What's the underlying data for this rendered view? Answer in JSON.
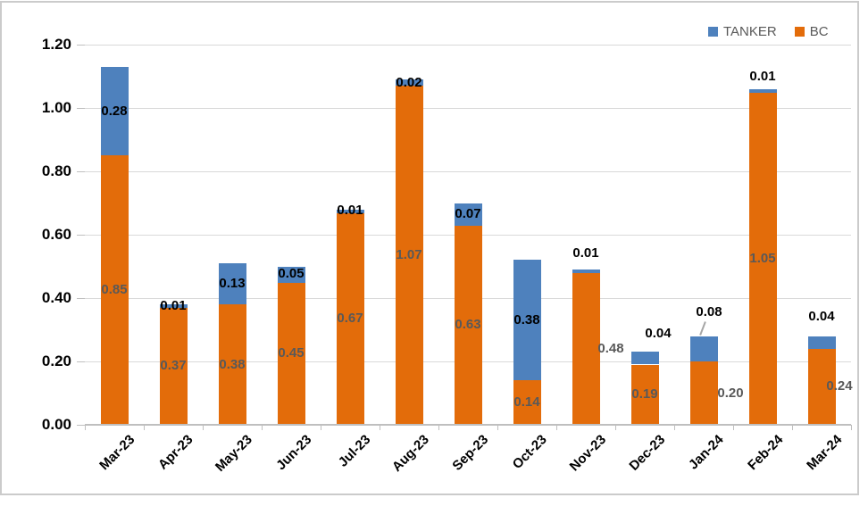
{
  "legend": {
    "items": [
      {
        "label": "TANKER",
        "color": "#4e81bd"
      },
      {
        "label": "BC",
        "color": "#e36c0a"
      }
    ]
  },
  "chart_data": {
    "type": "bar",
    "stacked": true,
    "title": "",
    "xlabel": "",
    "ylabel": "",
    "categories": [
      "Mar-23",
      "Apr-23",
      "May-23",
      "Jun-23",
      "Jul-23",
      "Aug-23",
      "Sep-23",
      "Oct-23",
      "Nov-23",
      "Dec-23",
      "Jan-24",
      "Feb-24",
      "Mar-24"
    ],
    "series": [
      {
        "name": "BC",
        "color": "#e36c0a",
        "label_color": "#595959",
        "values": [
          0.85,
          0.37,
          0.38,
          0.45,
          0.67,
          1.07,
          0.63,
          0.14,
          0.48,
          0.19,
          0.2,
          1.05,
          0.24
        ]
      },
      {
        "name": "TANKER",
        "color": "#4e81bd",
        "label_color": "#000000",
        "values": [
          0.28,
          0.01,
          0.13,
          0.05,
          0.01,
          0.02,
          0.07,
          0.38,
          0.01,
          0.04,
          0.08,
          0.01,
          0.04
        ]
      }
    ],
    "ylim": [
      0,
      1.2
    ],
    "ytick_labels": [
      "0.00",
      "0.20",
      "0.40",
      "0.60",
      "0.80",
      "1.00",
      "1.20"
    ],
    "grid": true,
    "legend_position": "top-right",
    "value_format": "0.00",
    "layout_hints": {
      "gridline_color": "#d9d9d9",
      "axis_color": "#bfbfbf",
      "tanker_label_mode": [
        "center",
        "center",
        "center",
        "center",
        "center",
        "center",
        "center",
        "center",
        "above",
        "above",
        "above",
        "above",
        "above"
      ],
      "tanker_label_dx": [
        0,
        0,
        0,
        0,
        0,
        0,
        0,
        0,
        0,
        15,
        6,
        0,
        0
      ],
      "tanker_label_dy": [
        0,
        0,
        0,
        0,
        0,
        0,
        0,
        0,
        -18,
        -20,
        -27,
        -14,
        -22
      ],
      "bc_label_dx": [
        0,
        0,
        0,
        0,
        0,
        0,
        0,
        0,
        28,
        0,
        30,
        0,
        20
      ],
      "leader_line_category": "Jan-24"
    }
  }
}
